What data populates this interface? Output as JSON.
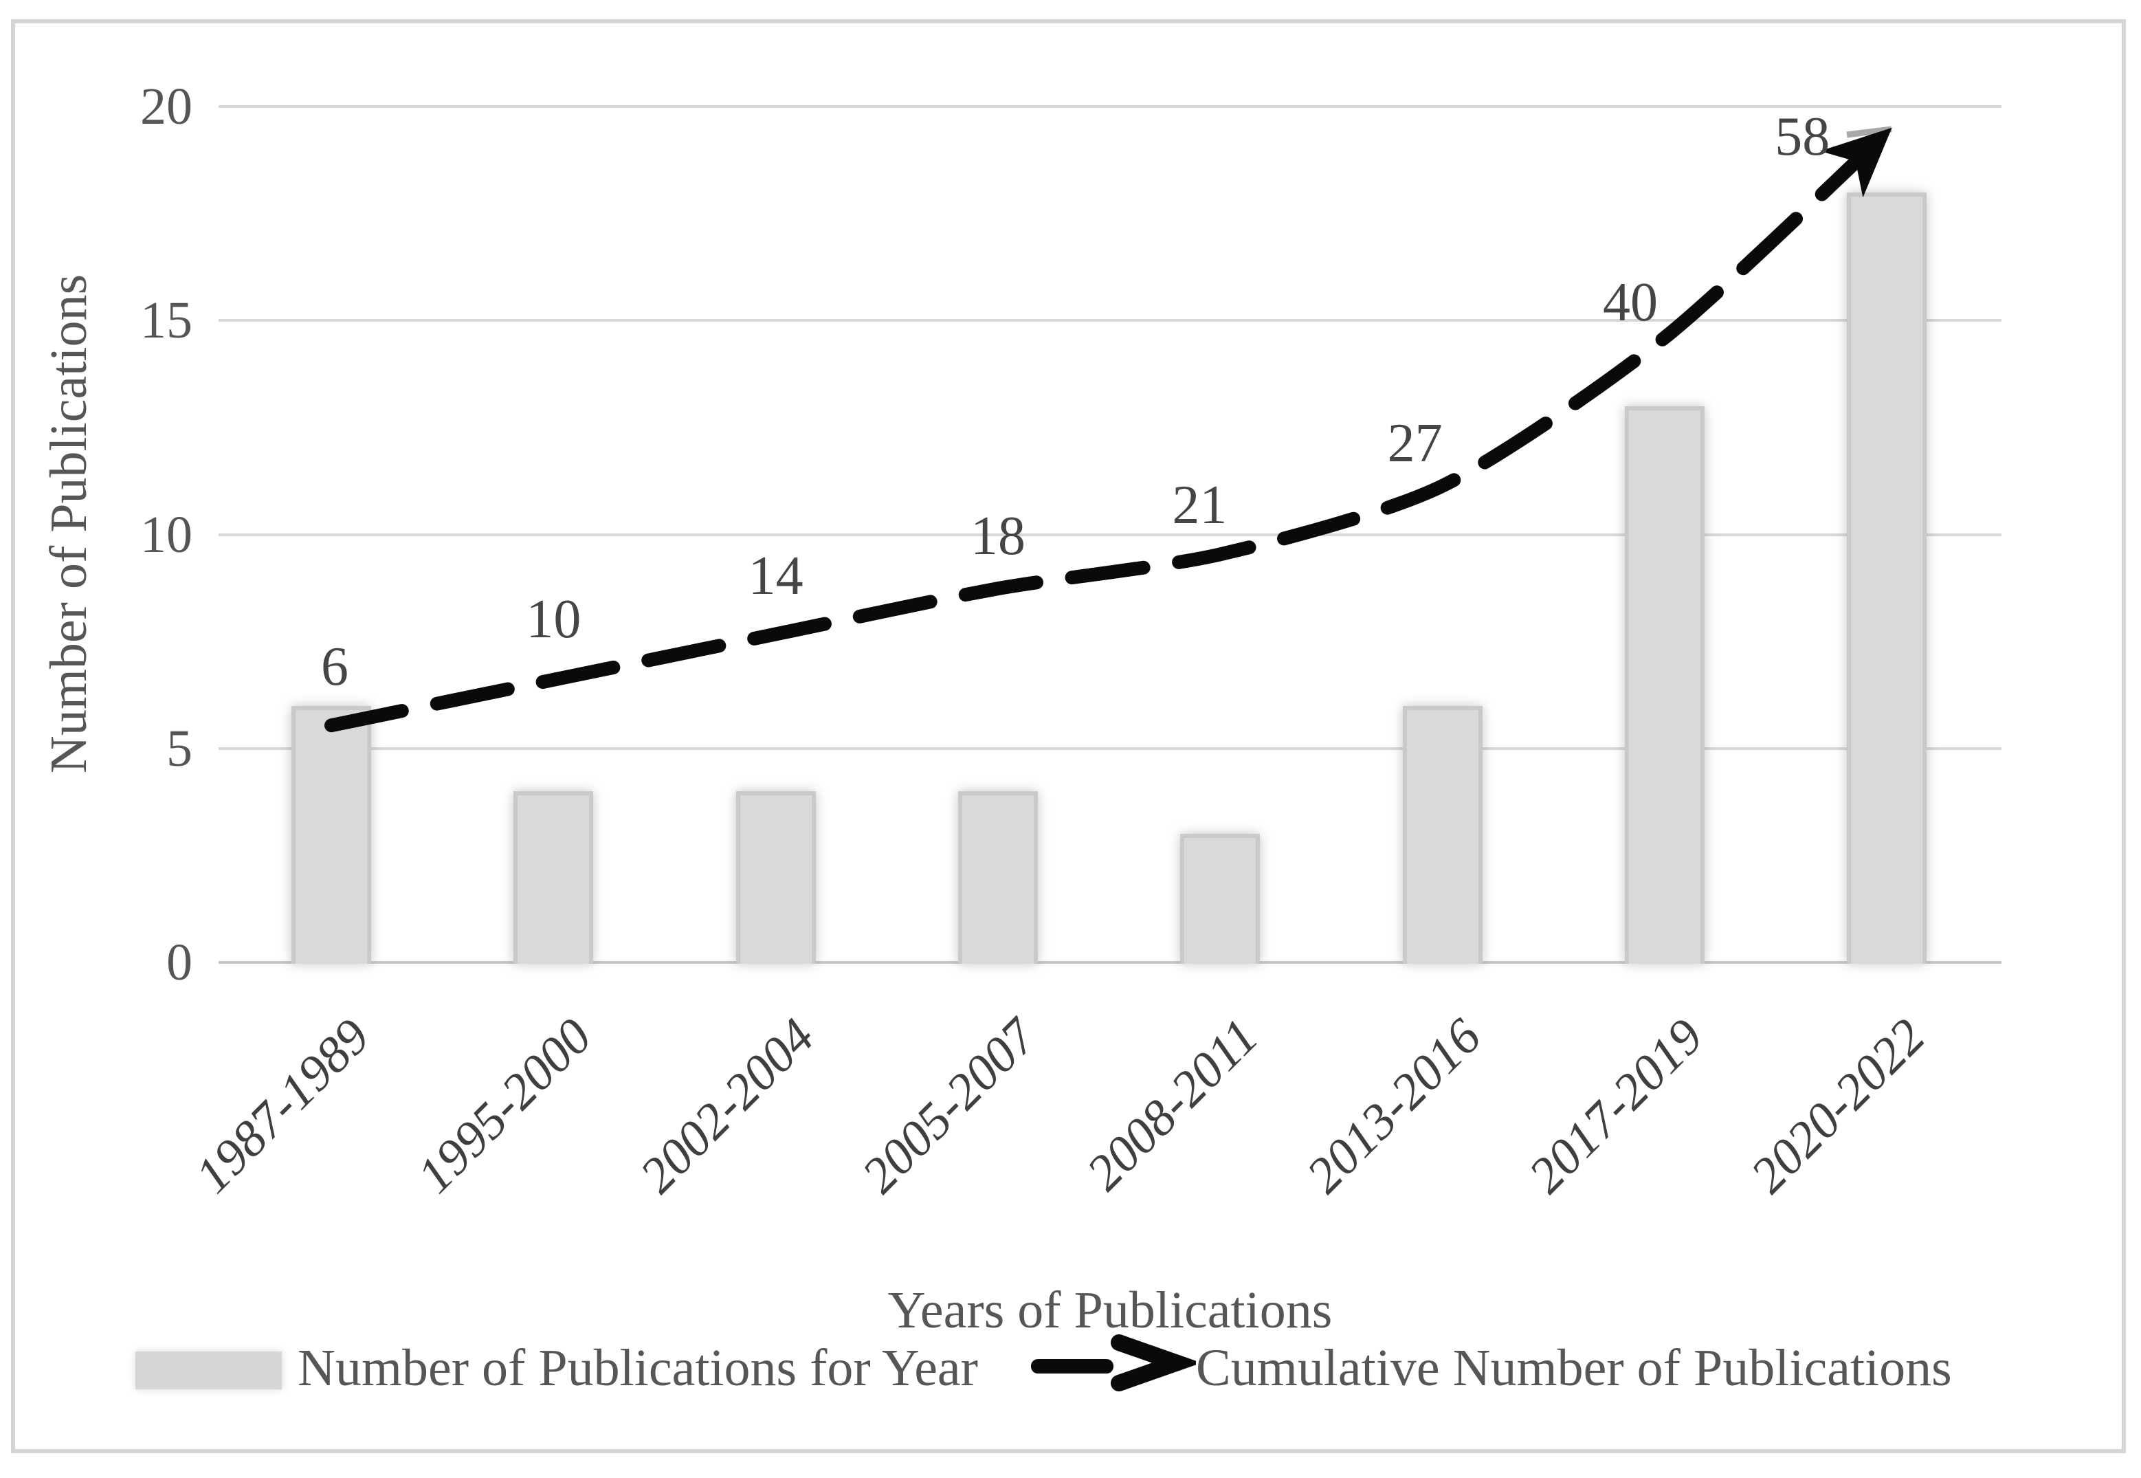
{
  "chart_data": {
    "type": "bar+line",
    "title": "",
    "categories": [
      "1987-1989",
      "1995-2000",
      "2002-2004",
      "2005-2007",
      "2008-2011",
      "2013-2016",
      "2017-2019",
      "2020-2022"
    ],
    "series": [
      {
        "name": "Number of Publications for Year",
        "type": "bar",
        "values": [
          6,
          4,
          4,
          4,
          3,
          6,
          13,
          18
        ]
      },
      {
        "name": "Cumulative Number of Publications",
        "type": "line",
        "values": [
          6,
          10,
          14,
          18,
          21,
          27,
          40,
          58
        ],
        "point_labels": [
          "6",
          "10",
          "14",
          "18",
          "21",
          "27",
          "40",
          "58"
        ]
      }
    ],
    "xlabel": "Years of Publications",
    "ylabel": "Number of Publications",
    "yticks": [
      "0",
      "5",
      "10",
      "15",
      "20"
    ],
    "ylim": [
      0,
      20
    ],
    "grid": true,
    "legend_position": "bottom",
    "line_style": "dashed-with-arrowhead"
  },
  "colors": {
    "background": "#ffffff",
    "bar_fill": "#d9d9d9",
    "bar_border": "#c9c9c9",
    "line": "#0a0a0a",
    "gridline": "#d7d7d7",
    "axis_line": "#c6c6c6",
    "tick_text": "#555555",
    "data_label_text": "#454545",
    "category_text": "#3f3f3f",
    "frame": "#d4d4d4",
    "leader_dash": "#a8a8a8"
  }
}
